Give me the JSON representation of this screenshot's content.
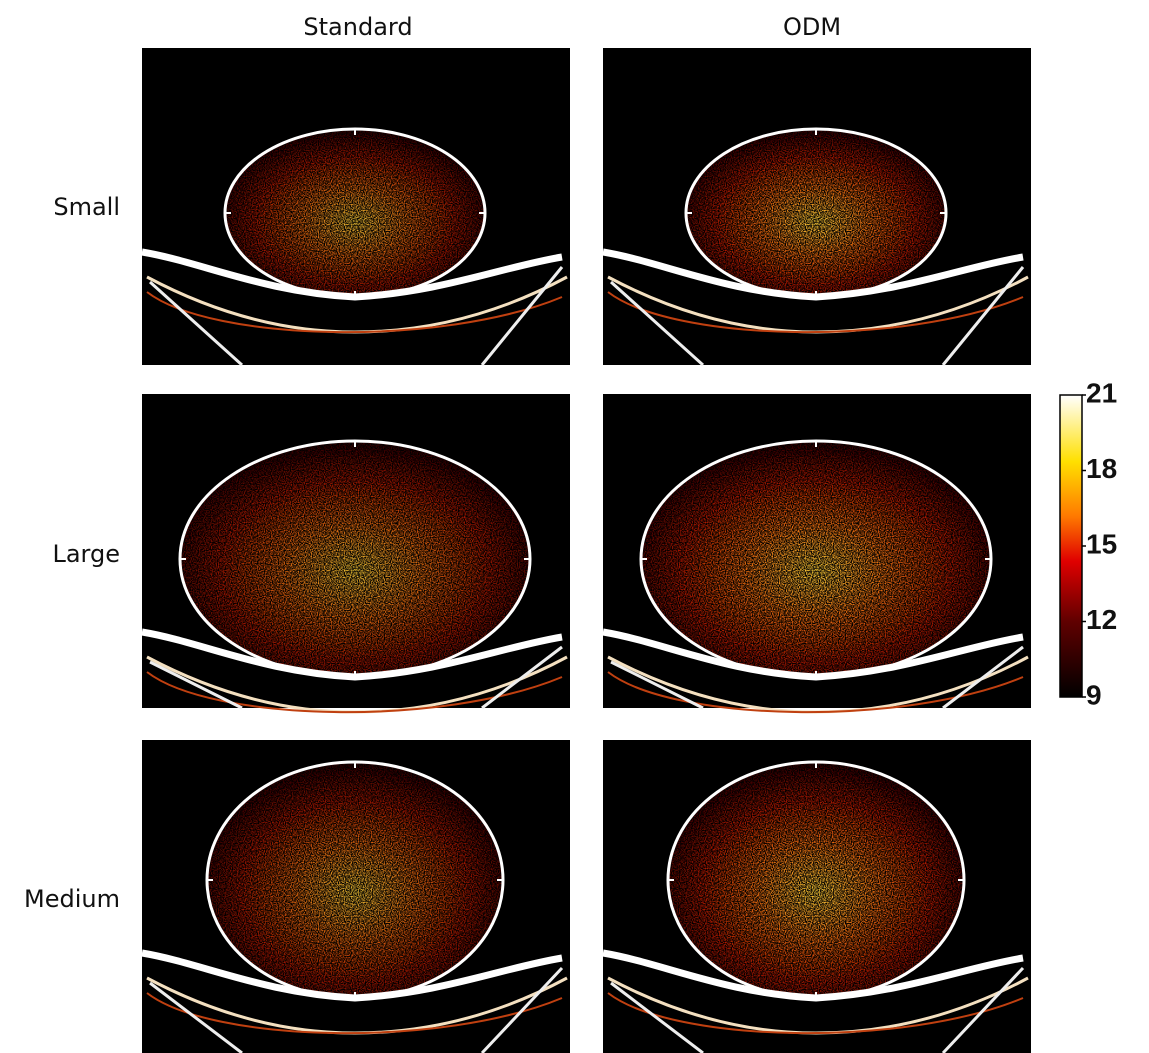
{
  "columns": [
    "Standard",
    "ODM"
  ],
  "rows": [
    "Small",
    "Large",
    "Medium"
  ],
  "colorbar": {
    "range": [
      9,
      21
    ],
    "ticks": [
      9,
      12,
      15,
      18,
      21
    ]
  }
}
